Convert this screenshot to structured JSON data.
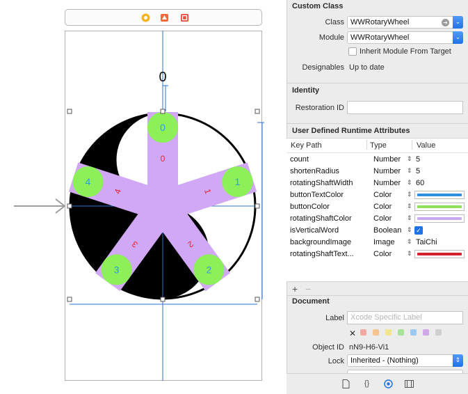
{
  "canvas": {
    "top_label": "0",
    "buttons": [
      {
        "number": "0",
        "slice": "0"
      },
      {
        "number": "1",
        "slice": "1"
      },
      {
        "number": "2",
        "slice": "2"
      },
      {
        "number": "3",
        "slice": "3"
      },
      {
        "number": "4",
        "slice": "4"
      }
    ],
    "colors": {
      "shaft": "#d0a8f5",
      "button": "#8ef058",
      "button_text": "#2f9ed8",
      "shaft_text": "#e8222d",
      "guide": "#2c6fd6"
    }
  },
  "inspector": {
    "custom_class": {
      "title": "Custom Class",
      "class_label": "Class",
      "class_value": "WWRotaryWheel",
      "module_label": "Module",
      "module_value": "WWRotaryWheel",
      "inherit_label": "Inherit Module From Target",
      "designables_label": "Designables",
      "designables_value": "Up to date"
    },
    "identity": {
      "title": "Identity",
      "restoration_label": "Restoration ID",
      "restoration_value": ""
    },
    "runtime_attributes": {
      "title": "User Defined Runtime Attributes",
      "headers": {
        "key_path": "Key Path",
        "type": "Type",
        "value": "Value"
      },
      "rows": [
        {
          "key": "count",
          "type": "Number",
          "value": "5"
        },
        {
          "key": "shortenRadius",
          "type": "Number",
          "value": "5"
        },
        {
          "key": "rotatingShaftWidth",
          "type": "Number",
          "value": "60"
        },
        {
          "key": "buttonTextColor",
          "type": "Color",
          "color": "#2f8fde"
        },
        {
          "key": "buttonColor",
          "type": "Color",
          "color": "#8ee05a"
        },
        {
          "key": "rotatingShaftColor",
          "type": "Color",
          "color": "#c9a8ef"
        },
        {
          "key": "isVerticalWord",
          "type": "Boolean",
          "value": "✓"
        },
        {
          "key": "backgroundImage",
          "type": "Image",
          "value": "TaiChi"
        },
        {
          "key": "rotatingShaftText...",
          "type": "Color",
          "color": "#d4232b"
        }
      ],
      "add_label": "+",
      "remove_label": "−"
    },
    "document": {
      "title": "Document",
      "label_label": "Label",
      "label_placeholder": "Xcode Specific Label",
      "clear_glyph": "✕",
      "label_colors": [
        "#f2a9a4",
        "#f6c58f",
        "#f2e68e",
        "#a8e39a",
        "#9cc8f3",
        "#d3a8e8",
        "#cfcfcf"
      ],
      "object_id_label": "Object ID",
      "object_id_value": "nN9-H6-Vi1",
      "lock_label": "Lock",
      "lock_value": "Inherited - (Nothing)"
    },
    "tabs": [
      "file-icon",
      "braces-icon",
      "identity-icon",
      "size-icon"
    ]
  }
}
